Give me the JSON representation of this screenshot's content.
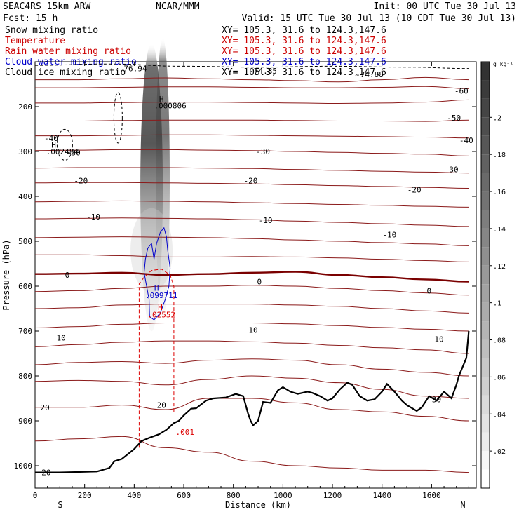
{
  "header": {
    "left_line1": "SEAC4RS 15km ARW",
    "left_line2": "Fcst:   15 h",
    "center": "NCAR/MMM",
    "init": "Init: 00 UTC Tue 30 Jul 13",
    "valid": "Valid: 15 UTC Tue 30 Jul 13 (10 CDT Tue 30 Jul 13)"
  },
  "legend": [
    {
      "label": "Snow mixing ratio",
      "xy": "XY= 105.3, 31.6 to 124.3,147.6",
      "color": "#000000",
      "xy_color": "#000000"
    },
    {
      "label": "Temperature",
      "xy": "XY= 105.3, 31.6 to 124.3,147.6",
      "color": "#cc0000",
      "xy_color": "#cc0000"
    },
    {
      "label": "Rain water mixing ratio",
      "xy": "XY= 105.3, 31.6 to 124.3,147.6",
      "color": "#cc0000",
      "xy_color": "#cc0000"
    },
    {
      "label": "Cloud water mixing ratio",
      "xy": "XY= 105.3, 31.6 to 124.3,147.6",
      "color": "#0000cc",
      "xy_color": "#0000cc"
    },
    {
      "label": "Cloud ice mixing ratio",
      "xy": "XY= 105.3, 31.6 to 124.3,147.6",
      "color": "#000000",
      "xy_color": "#000000"
    }
  ],
  "colors": {
    "temperature": "#8b1a1a",
    "zero_isotherm": "#7a0000",
    "rain": "#dd0000",
    "cloud_water": "#0000cc",
    "terrain": "#000000"
  },
  "chart_data": {
    "type": "cross-section",
    "xlabel": "Distance (km)",
    "ylabel": "Pressure (hPa)",
    "xlim": [
      0,
      1780
    ],
    "ylim": [
      1050,
      100
    ],
    "x_ticks": [
      "0",
      "200",
      "400",
      "600",
      "800",
      "1000",
      "1200",
      "1400",
      "1600"
    ],
    "x_tick_values": [
      0,
      200,
      400,
      600,
      800,
      1000,
      1200,
      1400,
      1600
    ],
    "y_ticks": [
      "200",
      "300",
      "400",
      "500",
      "600",
      "700",
      "800",
      "900",
      "1000"
    ],
    "y_tick_values": [
      200,
      300,
      400,
      500,
      600,
      700,
      800,
      900,
      1000
    ],
    "end_labels": {
      "left": "S",
      "right": "N"
    },
    "colorbar": {
      "unit": "g kg⁻¹",
      "range": [
        0,
        0.23
      ],
      "ticks": [
        ".02",
        ".04",
        ".06",
        ".08",
        ".1",
        ".12",
        ".14",
        ".16",
        ".18",
        ".2"
      ],
      "tick_values": [
        0.02,
        0.04,
        0.06,
        0.08,
        0.1,
        0.12,
        0.14,
        0.16,
        0.18,
        0.2
      ]
    },
    "isotherm_labels": [
      {
        "text": "-60",
        "x": 1720,
        "p": 165
      },
      {
        "text": "-50",
        "x": 1690,
        "p": 225
      },
      {
        "text": "-40",
        "x": 1740,
        "p": 275
      },
      {
        "text": "-40",
        "x": 65,
        "p": 270
      },
      {
        "text": "-30",
        "x": 920,
        "p": 300
      },
      {
        "text": "-30",
        "x": 1680,
        "p": 340
      },
      {
        "text": "-30",
        "x": 155,
        "p": 302
      },
      {
        "text": "-20",
        "x": 185,
        "p": 365
      },
      {
        "text": "-20",
        "x": 870,
        "p": 365
      },
      {
        "text": "-20",
        "x": 1530,
        "p": 385
      },
      {
        "text": "-10",
        "x": 235,
        "p": 445
      },
      {
        "text": "-10",
        "x": 930,
        "p": 453
      },
      {
        "text": "-10",
        "x": 1430,
        "p": 485
      },
      {
        "text": "0",
        "x": 130,
        "p": 575
      },
      {
        "text": "0",
        "x": 905,
        "p": 590
      },
      {
        "text": "0",
        "x": 1590,
        "p": 610
      },
      {
        "text": "10",
        "x": 105,
        "p": 715
      },
      {
        "text": "10",
        "x": 880,
        "p": 698
      },
      {
        "text": "10",
        "x": 1630,
        "p": 718
      },
      {
        "text": "20",
        "x": 40,
        "p": 870
      },
      {
        "text": "20",
        "x": 510,
        "p": 865
      },
      {
        "text": "20",
        "x": 45,
        "p": 1015
      },
      {
        "text": "30",
        "x": 1620,
        "p": 852
      }
    ],
    "field_labels": [
      {
        "text": "H",
        "x": 510,
        "p": 183,
        "color": "#000000"
      },
      {
        "text": ".000806",
        "x": 545,
        "p": 198,
        "color": "#000000"
      },
      {
        "text": "H",
        "x": 75,
        "p": 285,
        "color": "#000000"
      },
      {
        "text": ".002484",
        "x": 110,
        "p": 300,
        "color": "#000000"
      },
      {
        "text": "H",
        "x": 490,
        "p": 604,
        "color": "#0000cc"
      },
      {
        "text": ".099711",
        "x": 510,
        "p": 620,
        "color": "#0000cc"
      },
      {
        "text": "H",
        "x": 505,
        "p": 647,
        "color": "#dd0000"
      },
      {
        "text": ".02552",
        "x": 510,
        "p": 663,
        "color": "#dd0000"
      },
      {
        "text": ".001",
        "x": 605,
        "p": 925,
        "color": "#dd0000"
      },
      {
        "text": "-76.94",
        "x": 395,
        "p": 115,
        "color": "#000000"
      },
      {
        "text": "-74.85",
        "x": 920,
        "p": 120,
        "color": "#000000"
      },
      {
        "text": "-74.88",
        "x": 1350,
        "p": 128,
        "color": "#000000"
      }
    ],
    "terrain": {
      "x": [
        0,
        100,
        250,
        300,
        320,
        350,
        400,
        430,
        460,
        500,
        530,
        560,
        580,
        600,
        630,
        650,
        690,
        720,
        770,
        810,
        840,
        860,
        870,
        880,
        900,
        920,
        950,
        980,
        1000,
        1030,
        1060,
        1100,
        1120,
        1150,
        1180,
        1200,
        1230,
        1260,
        1280,
        1310,
        1340,
        1370,
        1400,
        1420,
        1450,
        1480,
        1500,
        1540,
        1560,
        1590,
        1620,
        1650,
        1680,
        1700,
        1710,
        1740,
        1750
      ],
      "p": [
        1015,
        1015,
        1013,
        1005,
        990,
        985,
        963,
        945,
        938,
        930,
        920,
        905,
        900,
        888,
        873,
        872,
        855,
        850,
        848,
        840,
        845,
        885,
        900,
        910,
        900,
        858,
        860,
        832,
        825,
        835,
        840,
        835,
        838,
        845,
        855,
        850,
        830,
        815,
        820,
        845,
        855,
        852,
        835,
        818,
        835,
        855,
        865,
        878,
        870,
        845,
        855,
        835,
        850,
        820,
        800,
        760,
        700
      ]
    },
    "temperature_contours": [
      {
        "values": [
          140,
          140,
          138,
          136,
          138,
          140,
          142,
          145,
          140,
          135,
          140
        ]
      },
      {
        "values": [
          158,
          158,
          157,
          156,
          156,
          157,
          158,
          158,
          157,
          155,
          160
        ]
      },
      {
        "values": [
          192,
          192,
          191,
          190,
          190,
          191,
          192,
          193,
          192,
          190,
          185
        ]
      },
      {
        "values": [
          232,
          232,
          231,
          230,
          230,
          230,
          231,
          232,
          232,
          233,
          230
        ]
      },
      {
        "values": [
          265,
          265,
          264,
          263,
          263,
          264,
          265,
          266,
          267,
          268,
          270
        ]
      },
      {
        "values": [
          298,
          297,
          296,
          296,
          297,
          298,
          300,
          302,
          304,
          306,
          310
        ]
      },
      {
        "values": [
          337,
          336,
          336,
          336,
          337,
          338,
          340,
          342,
          344,
          346,
          348
        ]
      },
      {
        "values": [
          370,
          369,
          369,
          370,
          371,
          372,
          374,
          376,
          378,
          380,
          382
        ]
      },
      {
        "values": [
          412,
          411,
          410,
          411,
          412,
          414,
          416,
          418,
          420,
          422,
          424
        ]
      },
      {
        "values": [
          450,
          449,
          448,
          449,
          450,
          452,
          455,
          458,
          461,
          464,
          467
        ]
      },
      {
        "values": [
          492,
          491,
          490,
          491,
          492,
          494,
          497,
          500,
          503,
          506,
          510
        ]
      },
      {
        "values": [
          530,
          530,
          532,
          535,
          535,
          534,
          535,
          537,
          540,
          543,
          546
        ]
      },
      {
        "values": [
          573,
          572,
          570,
          575,
          573,
          570,
          568,
          575,
          580,
          585,
          590
        ]
      },
      {
        "values": [
          612,
          610,
          605,
          600,
          600,
          598,
          600,
          605,
          610,
          615,
          620
        ]
      },
      {
        "values": [
          650,
          648,
          642,
          640,
          640,
          640,
          642,
          645,
          650,
          655,
          660
        ]
      },
      {
        "values": [
          693,
          690,
          685,
          682,
          682,
          682,
          684,
          688,
          692,
          696,
          700
        ]
      },
      {
        "values": [
          735,
          730,
          725,
          722,
          722,
          724,
          727,
          732,
          737,
          742,
          750
        ]
      },
      {
        "values": [
          775,
          770,
          768,
          772,
          765,
          762,
          765,
          775,
          785,
          792,
          800
        ]
      },
      {
        "values": [
          812,
          810,
          812,
          820,
          808,
          800,
          805,
          815,
          830,
          845,
          850
        ]
      },
      {
        "values": [
          870,
          870,
          865,
          875,
          850,
          850,
          860,
          875,
          880,
          890,
          900
        ]
      },
      {
        "values": [
          945,
          940,
          935,
          960,
          970,
          990,
          1000,
          1005,
          1010,
          1010,
          1015
        ]
      }
    ],
    "contour_x": [
      0,
      175,
      350,
      525,
      700,
      875,
      1050,
      1225,
      1400,
      1575,
      1750
    ]
  }
}
